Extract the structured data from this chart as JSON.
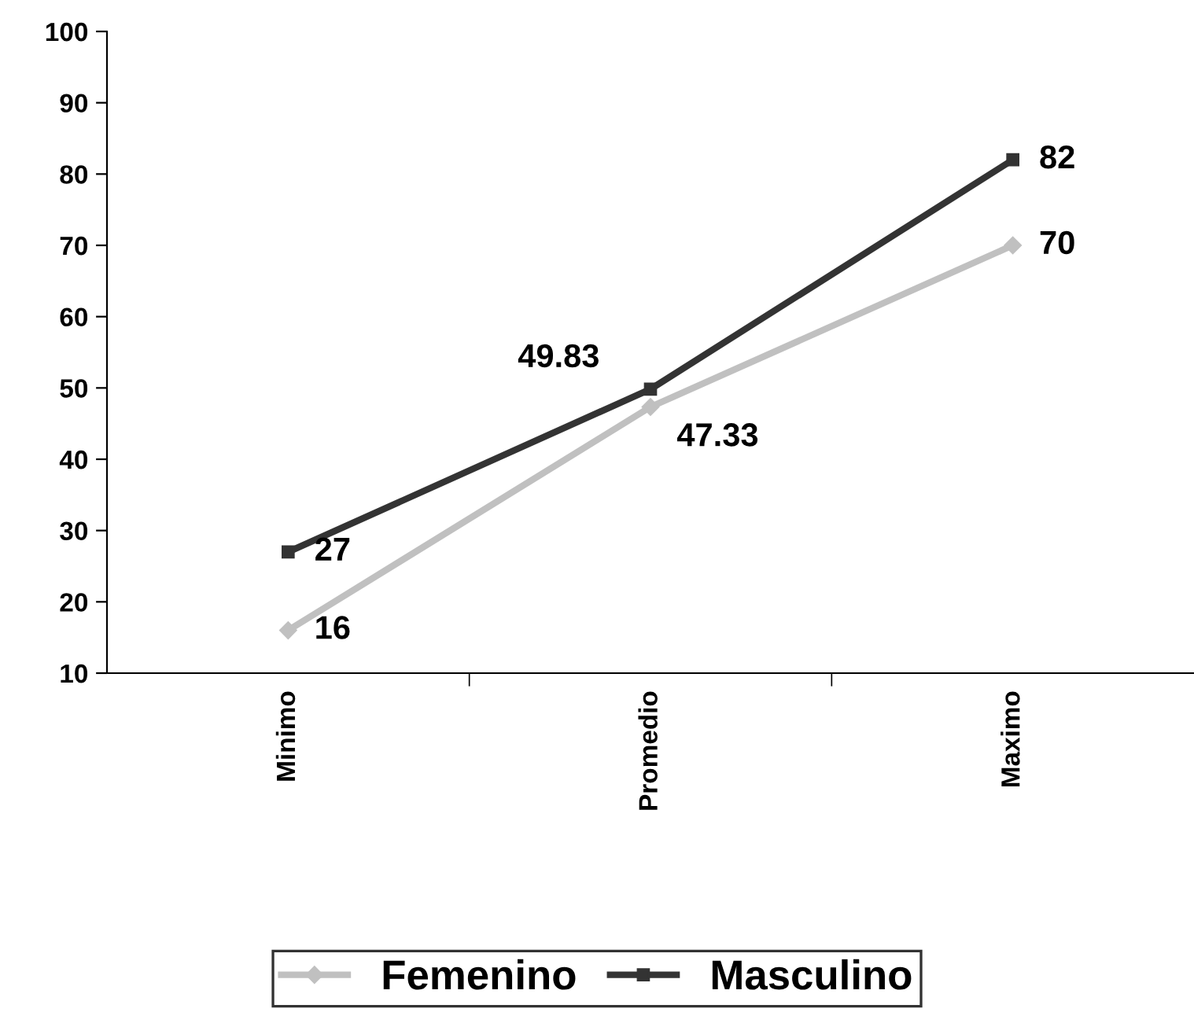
{
  "chart_data": {
    "type": "line",
    "categories": [
      "Minimo",
      "Promedio",
      "Maximo"
    ],
    "series": [
      {
        "name": "Femenino",
        "color": "#c0c0c0",
        "marker": "diamond",
        "values": [
          16,
          47.33,
          70
        ]
      },
      {
        "name": "Masculino",
        "color": "#333333",
        "marker": "square",
        "values": [
          27,
          49.83,
          82
        ]
      }
    ],
    "ylim": [
      10,
      100
    ],
    "yticks": [
      10,
      20,
      30,
      40,
      50,
      60,
      70,
      80,
      90,
      100
    ],
    "grid": false,
    "legend": "bottom",
    "line_style": "solid",
    "data_labels": true
  }
}
